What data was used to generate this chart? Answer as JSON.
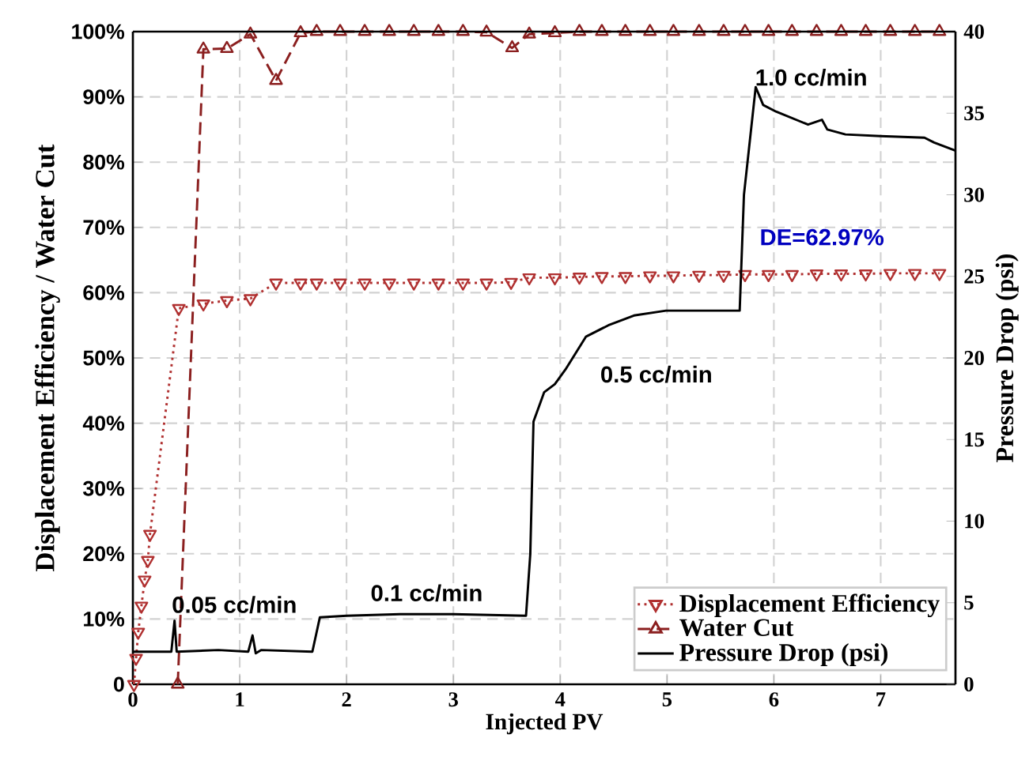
{
  "chart_data": {
    "type": "line",
    "xlabel": "Injected PV",
    "ylabel": "Displacement Efficiency / Water Cut",
    "y2label": "Pressure Drop (psi)",
    "xlim": [
      0,
      7.7
    ],
    "xticks": [
      0,
      1,
      2,
      3,
      4,
      5,
      6,
      7
    ],
    "ylim": [
      0,
      100
    ],
    "yticks": [
      0,
      {
        "value": 10,
        "label": "10%"
      },
      {
        "value": 20,
        "label": "20%"
      },
      {
        "value": 30,
        "label": "30%"
      },
      {
        "value": 40,
        "label": "40%"
      },
      {
        "value": 50,
        "label": "50%"
      },
      {
        "value": 60,
        "label": "60%"
      },
      {
        "value": 70,
        "label": "70%"
      },
      {
        "value": 80,
        "label": "80%"
      },
      {
        "value": 90,
        "label": "90%"
      },
      {
        "value": 100,
        "label": "100%"
      }
    ],
    "y2lim": [
      0,
      40
    ],
    "y2ticks": [
      0,
      5,
      10,
      15,
      20,
      25,
      30,
      35,
      40
    ],
    "grid": true,
    "legend": "bottom right",
    "annotations": [
      "0.05 cc/min",
      "0.1 cc/min",
      "0.5 cc/min",
      "1.0 cc/min",
      "DE=62.97%"
    ],
    "series": [
      {
        "name": "Displacement Efficiency",
        "color": "#b03030",
        "marker": "triangle",
        "line_style": "dotted",
        "x": [
          0.01,
          0.03,
          0.05,
          0.08,
          0.11,
          0.14,
          0.16,
          0.43,
          0.66,
          0.88,
          1.1,
          1.34,
          1.57,
          1.72,
          1.94,
          2.17,
          2.4,
          2.63,
          2.86,
          3.09,
          3.31,
          3.54,
          3.71,
          3.95,
          4.18,
          4.39,
          4.61,
          4.84,
          5.06,
          5.3,
          5.53,
          5.73,
          5.95,
          6.17,
          6.4,
          6.63,
          6.86,
          7.09,
          7.32,
          7.55
        ],
        "values": [
          0,
          4,
          8,
          12,
          16,
          19,
          23,
          57.6,
          58.3,
          58.8,
          59.1,
          61.5,
          61.5,
          61.5,
          61.5,
          61.5,
          61.5,
          61.5,
          61.5,
          61.5,
          61.5,
          61.6,
          62.3,
          62.3,
          62.4,
          62.5,
          62.5,
          62.6,
          62.6,
          62.7,
          62.7,
          62.8,
          62.8,
          62.8,
          62.9,
          62.9,
          62.9,
          62.97,
          62.97,
          62.97
        ]
      },
      {
        "name": "Water Cut",
        "color": "#8b1f1f",
        "marker": "triangle",
        "line_style": "dashed",
        "x": [
          0.42,
          0.66,
          0.88,
          1.1,
          1.34,
          1.57,
          1.72,
          1.94,
          2.17,
          2.4,
          2.63,
          2.86,
          3.09,
          3.31,
          3.55,
          3.71,
          3.95,
          4.18,
          4.39,
          4.61,
          4.84,
          5.06,
          5.3,
          5.53,
          5.73,
          5.95,
          6.17,
          6.4,
          6.63,
          6.86,
          7.09,
          7.32,
          7.55
        ],
        "values": [
          0,
          97.3,
          97.4,
          99.6,
          92.5,
          99.8,
          100,
          100,
          100,
          100,
          100,
          100,
          100,
          99.9,
          97.5,
          99.6,
          99.8,
          100,
          100,
          100,
          100,
          100,
          100,
          100,
          100,
          100,
          100,
          100,
          100,
          100,
          100,
          100,
          100
        ]
      },
      {
        "name": "Pressure Drop (psi)",
        "color": "#000000",
        "marker": "none",
        "line_style": "solid",
        "axis": "y2",
        "x": [
          0,
          0.36,
          0.39,
          0.41,
          0.8,
          1.08,
          1.12,
          1.15,
          1.2,
          1.68,
          1.75,
          2.0,
          2.5,
          3.0,
          3.68,
          3.72,
          3.75,
          3.85,
          3.95,
          4.05,
          4.24,
          4.45,
          4.69,
          4.99,
          5.3,
          5.68,
          5.72,
          5.83,
          5.9,
          6.02,
          6.32,
          6.45,
          6.5,
          6.67,
          7.0,
          7.41,
          7.5,
          7.7
        ],
        "values": [
          2.0,
          2.0,
          3.9,
          2.0,
          2.1,
          2.0,
          3.0,
          1.9,
          2.1,
          2.0,
          4.1,
          4.2,
          4.3,
          4.3,
          4.2,
          8,
          16.1,
          17.9,
          18.4,
          19.3,
          21.3,
          22.0,
          22.6,
          22.9,
          22.9,
          22.9,
          30,
          36.6,
          35.5,
          35.1,
          34.3,
          34.6,
          34.0,
          33.7,
          33.6,
          33.5,
          33.2,
          32.7
        ]
      }
    ]
  }
}
